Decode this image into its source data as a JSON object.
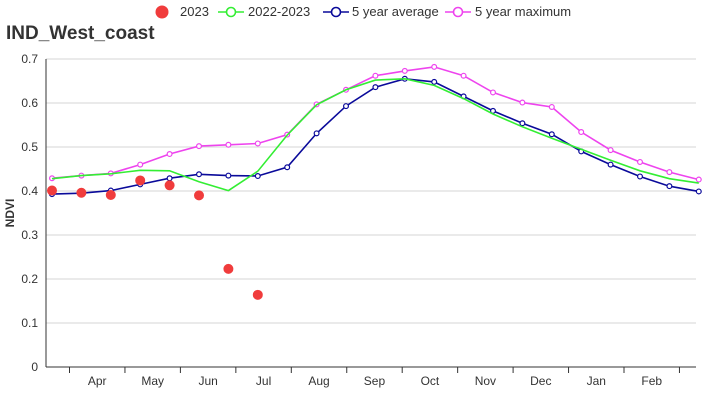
{
  "chart_data": {
    "type": "line",
    "title": "IND_West_coast",
    "ylabel": "NDVI",
    "xlabel": "",
    "ylim": [
      0,
      0.7
    ],
    "yticks": [
      "0",
      "0.1",
      "0.2",
      "0.3",
      "0.4",
      "0.5",
      "0.6",
      "0.7"
    ],
    "month_labels": [
      "Apr",
      "May",
      "Jun",
      "Jul",
      "Aug",
      "Sep",
      "Oct",
      "Nov",
      "Dec",
      "Jan",
      "Feb"
    ],
    "grid": "horizontal",
    "legend_position": "top",
    "legend": {
      "s2023": "2023",
      "s2223": "2022-2023",
      "avg5": "5 year average",
      "max5": "5 year maximum"
    },
    "colors": {
      "s2023": "#f03c3c",
      "s2223": "#33ee33",
      "avg5": "#0a0a9a",
      "max5": "#ee44ee"
    },
    "x_index": [
      0,
      1,
      2,
      3,
      4,
      5,
      6,
      7,
      8,
      9,
      10,
      11,
      12,
      13,
      14,
      15,
      16,
      17,
      18,
      19,
      20,
      21,
      22
    ],
    "series": [
      {
        "key": "s2023",
        "name": "2023",
        "style": "dots",
        "values": [
          0.401,
          0.396,
          0.391,
          0.424,
          0.413,
          0.39,
          0.223,
          0.164,
          null,
          null,
          null,
          null,
          null,
          null,
          null,
          null,
          null,
          null,
          null,
          null,
          null,
          null,
          null
        ]
      },
      {
        "key": "s2223",
        "name": "2022-2023",
        "style": "line",
        "values": [
          0.428,
          0.435,
          0.439,
          0.447,
          0.446,
          0.421,
          0.401,
          0.445,
          0.527,
          0.596,
          0.63,
          0.652,
          0.655,
          0.64,
          0.61,
          0.575,
          0.546,
          0.52,
          0.495,
          0.47,
          0.446,
          0.428,
          0.418
        ]
      },
      {
        "key": "avg5",
        "name": "5 year average",
        "style": "line-markers",
        "values": [
          0.393,
          0.395,
          0.401,
          0.415,
          0.429,
          0.438,
          0.435,
          0.434,
          0.454,
          0.531,
          0.593,
          0.636,
          0.655,
          0.648,
          0.615,
          0.582,
          0.554,
          0.529,
          0.49,
          0.46,
          0.433,
          0.411,
          0.399
        ]
      },
      {
        "key": "max5",
        "name": "5 year maximum",
        "style": "line-markers",
        "values": [
          0.429,
          0.435,
          0.44,
          0.46,
          0.484,
          0.502,
          0.505,
          0.508,
          0.528,
          0.597,
          0.63,
          0.662,
          0.673,
          0.682,
          0.662,
          0.624,
          0.601,
          0.591,
          0.534,
          0.493,
          0.466,
          0.443,
          0.426
        ]
      }
    ]
  }
}
